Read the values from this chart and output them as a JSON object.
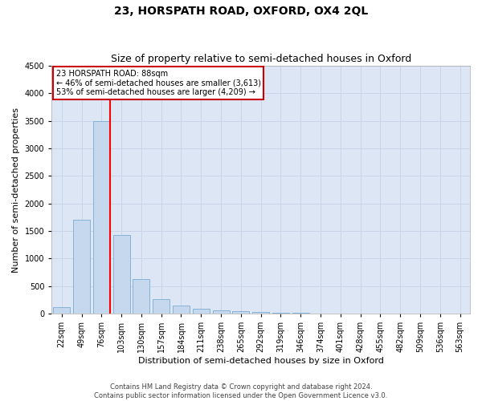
{
  "title": "23, HORSPATH ROAD, OXFORD, OX4 2QL",
  "subtitle": "Size of property relative to semi-detached houses in Oxford",
  "xlabel": "Distribution of semi-detached houses by size in Oxford",
  "ylabel": "Number of semi-detached properties",
  "categories": [
    "22sqm",
    "49sqm",
    "76sqm",
    "103sqm",
    "130sqm",
    "157sqm",
    "184sqm",
    "211sqm",
    "238sqm",
    "265sqm",
    "292sqm",
    "319sqm",
    "346sqm",
    "374sqm",
    "401sqm",
    "428sqm",
    "455sqm",
    "482sqm",
    "509sqm",
    "536sqm",
    "563sqm"
  ],
  "values": [
    120,
    1700,
    3500,
    1430,
    620,
    270,
    150,
    90,
    65,
    50,
    30,
    15,
    10,
    5,
    3,
    2,
    1,
    1,
    1,
    0,
    0
  ],
  "bar_color": "#c5d8ed",
  "bar_edge_color": "#7aabd0",
  "red_line_index": 2,
  "annotation_text_line1": "23 HORSPATH ROAD: 88sqm",
  "annotation_text_line2": "← 46% of semi-detached houses are smaller (3,613)",
  "annotation_text_line3": "53% of semi-detached houses are larger (4,209) →",
  "annotation_box_color": "#ffffff",
  "annotation_box_edge_color": "#cc0000",
  "ylim": [
    0,
    4500
  ],
  "yticks": [
    0,
    500,
    1000,
    1500,
    2000,
    2500,
    3000,
    3500,
    4000,
    4500
  ],
  "grid_color": "#c8d4e8",
  "background_color": "#dce6f5",
  "footer_line1": "Contains HM Land Registry data © Crown copyright and database right 2024.",
  "footer_line2": "Contains public sector information licensed under the Open Government Licence v3.0.",
  "title_fontsize": 10,
  "subtitle_fontsize": 9,
  "annotation_fontsize": 7,
  "tick_fontsize": 7,
  "ylabel_fontsize": 8,
  "xlabel_fontsize": 8,
  "footer_fontsize": 6
}
